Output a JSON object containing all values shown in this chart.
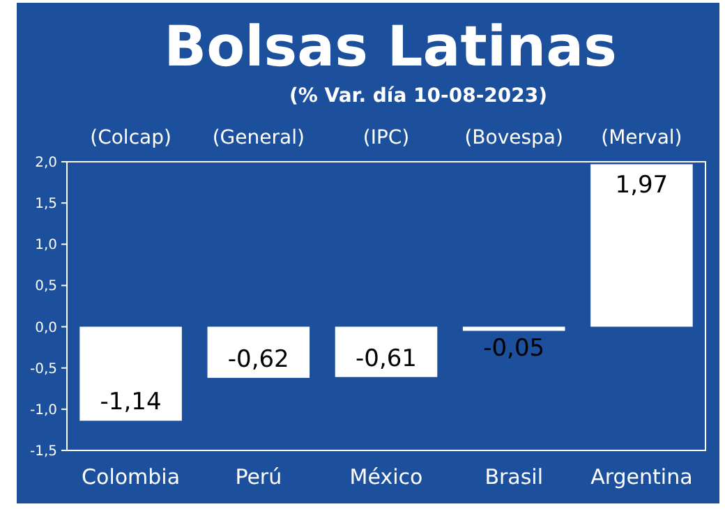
{
  "chart_data": {
    "type": "bar",
    "title": "Bolsas Latinas",
    "subtitle": "(% Var. día 10-08-2023)",
    "categories": [
      "Colombia",
      "Perú",
      "México",
      "Brasil",
      "Argentina"
    ],
    "values": [
      -1.14,
      -0.62,
      -0.61,
      -0.05,
      1.97
    ],
    "value_labels": [
      "-1,14",
      "-0,62",
      "-0,61",
      "-0,05",
      "1,97"
    ],
    "color": "#ffffff",
    "annotations": [
      "(Colcap)",
      "(General)",
      "(IPC)",
      "(Bovespa)",
      "(Merval)"
    ],
    "ylim": [
      -1.5,
      2.0
    ],
    "yticks": [
      {
        "value": -1.5,
        "label": "-1,5"
      },
      {
        "value": -1.0,
        "label": "-1,0"
      },
      {
        "value": -0.5,
        "label": "-0,5"
      },
      {
        "value": 0,
        "label": "0,0"
      },
      {
        "value": 0.5,
        "label": "0,5"
      },
      {
        "value": 1.0,
        "label": "1,0"
      },
      {
        "value": 1.5,
        "label": "1,5"
      },
      {
        "value": 2.0,
        "label": "2,0"
      }
    ],
    "grid": false
  }
}
